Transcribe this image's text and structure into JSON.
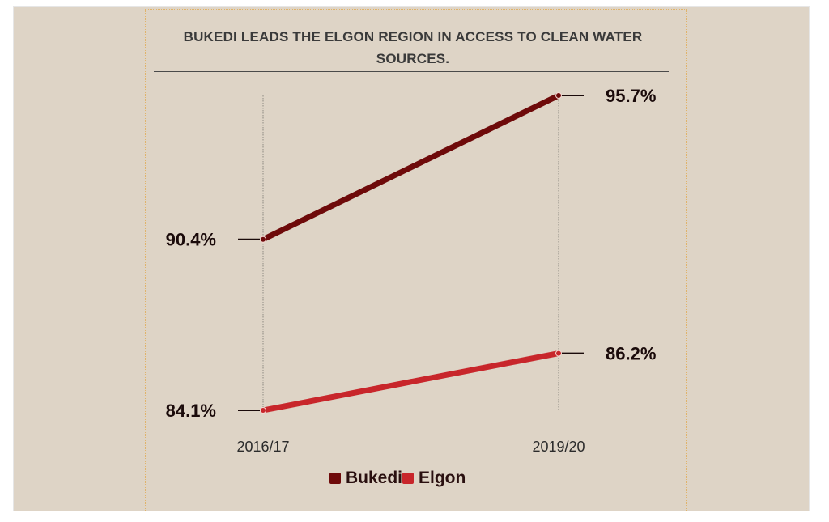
{
  "chart_data": {
    "type": "line",
    "title": "BUKEDI LEADS THE ELGON REGION IN ACCESS TO CLEAN WATER SOURCES.",
    "categories": [
      "2016/17",
      "2019/20"
    ],
    "series": [
      {
        "name": "Bukedi",
        "values": [
          90.4,
          95.7
        ],
        "labels": [
          "90.4%",
          "95.7%"
        ],
        "color": "#6e0a0a"
      },
      {
        "name": "Elgon",
        "values": [
          84.1,
          86.2
        ],
        "labels": [
          "84.1%",
          "86.2%"
        ],
        "color": "#c8262b"
      }
    ],
    "ylim": [
      84.1,
      95.7
    ],
    "grid": false,
    "legend": "bottom"
  }
}
